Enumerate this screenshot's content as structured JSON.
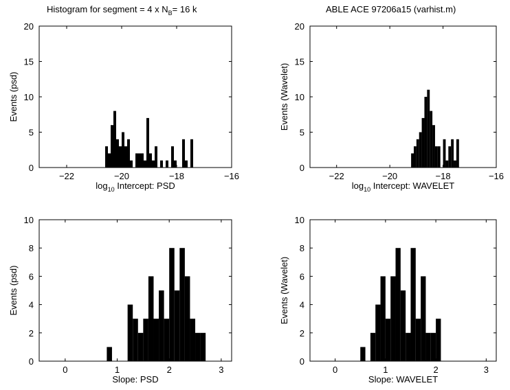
{
  "figure": {
    "title_left": {
      "pre": "Histogram for segment = 4 x N",
      "sub": "B",
      "post": "= 16 k"
    },
    "title_right": "ABLE ACE 97206a15 (varhist.m)"
  },
  "chart_data": [
    {
      "type": "bar",
      "xlim": [
        -23,
        -16
      ],
      "ylim": [
        0,
        20
      ],
      "xticks": [
        "-22",
        "-20",
        "-18",
        "-16"
      ],
      "yticks": [
        "0",
        "5",
        "10",
        "15",
        "20"
      ],
      "xlabel": {
        "pre": "log",
        "sub": "10",
        "post": " Intercept: PSD"
      },
      "ylabel": "Events (psd)",
      "bin_width": 0.1,
      "bin_starts": [
        -20.6,
        -20.5,
        -20.4,
        -20.3,
        -20.2,
        -20.1,
        -20.0,
        -19.9,
        -19.8,
        -19.7,
        -19.6,
        -19.5,
        -19.4,
        -19.3,
        -19.2,
        -19.1,
        -19.0,
        -18.9,
        -18.8,
        -18.7,
        -18.6,
        -18.5,
        -18.4,
        -18.3,
        -18.2,
        -18.1,
        -18.0,
        -17.9,
        -17.8,
        -17.7,
        -17.6,
        -17.5
      ],
      "values": [
        3,
        2,
        6,
        8,
        4,
        3,
        5,
        3,
        4,
        1,
        0,
        2,
        2,
        2,
        1,
        7,
        2,
        1,
        3,
        0,
        1,
        0,
        1,
        0,
        3,
        1,
        0,
        0,
        4,
        1,
        0,
        4
      ]
    },
    {
      "type": "bar",
      "xlim": [
        -23,
        -16
      ],
      "ylim": [
        0,
        20
      ],
      "xticks": [
        "-22",
        "-20",
        "-18",
        "-16"
      ],
      "yticks": [
        "0",
        "5",
        "10",
        "15",
        "20"
      ],
      "xlabel": {
        "pre": "log",
        "sub": "10",
        "post": " Intercept: WAVELET"
      },
      "ylabel": "Events (Wavelet)",
      "bin_width": 0.1,
      "bin_starts": [
        -19.2,
        -19.1,
        -19.0,
        -18.9,
        -18.8,
        -18.7,
        -18.6,
        -18.5,
        -18.4,
        -18.3,
        -18.2,
        -18.1,
        -18.0,
        -17.9,
        -17.8,
        -17.7,
        -17.6,
        -17.5
      ],
      "values": [
        2,
        3,
        4,
        5,
        7,
        10,
        11,
        8,
        6,
        3,
        3,
        0,
        4,
        1,
        3,
        4,
        1,
        4
      ]
    },
    {
      "type": "bar",
      "xlim": [
        -0.5,
        3.2
      ],
      "ylim": [
        0,
        10
      ],
      "xticks": [
        "0",
        "1",
        "2",
        "3"
      ],
      "yticks": [
        "0",
        "2",
        "4",
        "6",
        "8",
        "10"
      ],
      "xlabel": "Slope:  PSD",
      "ylabel": "Events (psd)",
      "bin_width": 0.1,
      "bin_starts": [
        0.8,
        0.9,
        1.0,
        1.1,
        1.2,
        1.3,
        1.4,
        1.5,
        1.6,
        1.7,
        1.8,
        1.9,
        2.0,
        2.1,
        2.2,
        2.3,
        2.4,
        2.5,
        2.6
      ],
      "values": [
        1,
        0,
        0,
        0,
        4,
        3,
        2,
        3,
        6,
        3,
        5,
        3,
        8,
        5,
        8,
        6,
        3,
        2,
        2
      ]
    },
    {
      "type": "bar",
      "xlim": [
        -0.5,
        3.2
      ],
      "ylim": [
        0,
        10
      ],
      "xticks": [
        "0",
        "1",
        "2",
        "3"
      ],
      "yticks": [
        "0",
        "2",
        "4",
        "6",
        "8",
        "10"
      ],
      "xlabel": "Slope:  WAVELET",
      "ylabel": "Events (Wavelet)",
      "bin_width": 0.1,
      "bin_starts": [
        0.5,
        0.6,
        0.7,
        0.8,
        0.9,
        1.0,
        1.1,
        1.2,
        1.3,
        1.4,
        1.5,
        1.6,
        1.7,
        1.8,
        1.9,
        2.0
      ],
      "values": [
        1,
        0,
        2,
        4,
        6,
        3,
        6,
        8,
        5,
        2,
        8,
        3,
        6,
        2,
        2,
        3
      ]
    }
  ]
}
